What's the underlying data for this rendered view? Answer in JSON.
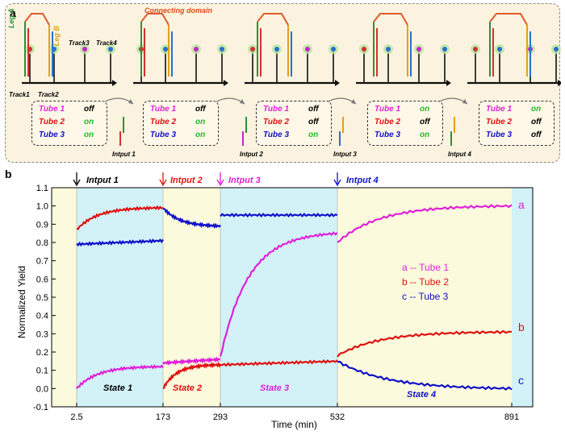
{
  "figure_a": {
    "label": "a",
    "connecting_domain": "Connecting domain",
    "leg_a": "Leg A",
    "leg_b": "Leg B",
    "tracks": [
      "Track1",
      "Track2",
      "Track3",
      "Track4"
    ],
    "states": [
      {
        "rows": [
          {
            "tube": "Tube 1",
            "value": "off"
          },
          {
            "tube": "Tube 2",
            "value": "on"
          },
          {
            "tube": "Tube 3",
            "value": "on"
          }
        ]
      },
      {
        "rows": [
          {
            "tube": "Tube 1",
            "value": "off"
          },
          {
            "tube": "Tube 2",
            "value": "on"
          },
          {
            "tube": "Tube 3",
            "value": "on"
          }
        ]
      },
      {
        "rows": [
          {
            "tube": "Tube 1",
            "value": "off"
          },
          {
            "tube": "Tube 2",
            "value": "off"
          },
          {
            "tube": "Tube 3",
            "value": "on"
          }
        ]
      },
      {
        "rows": [
          {
            "tube": "Tube 1",
            "value": "on"
          },
          {
            "tube": "Tube 2",
            "value": "off"
          },
          {
            "tube": "Tube 3",
            "value": "on"
          }
        ]
      },
      {
        "rows": [
          {
            "tube": "Tube 1",
            "value": "on"
          },
          {
            "tube": "Tube 2",
            "value": "off"
          },
          {
            "tube": "Tube 3",
            "value": "off"
          }
        ]
      }
    ],
    "inputs": [
      "Intput 1",
      "Intput 2",
      "Intput 3",
      "Intput 4"
    ]
  },
  "figure_b": {
    "label": "b",
    "colors": {
      "tube1": "#e020d8",
      "tube2": "#e01010",
      "tube3": "#1010c8",
      "bg_yellow": "#fcfadc",
      "bg_blue": "#d2f2f8"
    },
    "chart_data": {
      "type": "line",
      "xlabel": "Time (min)",
      "ylabel": "Normalized Yield",
      "xticks": [
        "2.5",
        "173",
        "293",
        "532",
        "891"
      ],
      "yticks": [
        "-0.1",
        "0.0",
        "0.1",
        "0.2",
        "0.3",
        "0.4",
        "0.5",
        "0.6",
        "0.7",
        "0.8",
        "0.9",
        "1.0",
        "1.1"
      ],
      "ylim": [
        -0.1,
        1.1
      ],
      "inputs": [
        {
          "label": "Intput 1",
          "at": "2.5",
          "color": "#000000"
        },
        {
          "label": "Intput 2",
          "at": "173",
          "color": "#e01010"
        },
        {
          "label": "Intput 3",
          "at": "293",
          "color": "#e020d8"
        },
        {
          "label": "Intput 4",
          "at": "532",
          "color": "#1010c8"
        }
      ],
      "states": [
        {
          "label": "State 1",
          "color": "#000000"
        },
        {
          "label": "State 2",
          "color": "#e01010"
        },
        {
          "label": "State 3",
          "color": "#e020d8"
        },
        {
          "label": "State 4",
          "color": "#1010c8"
        }
      ],
      "legend": [
        "a -- Tube 1",
        "b -- Tube 2",
        "c -- Tube 3"
      ],
      "curve_letters": [
        "a",
        "b",
        "c"
      ],
      "series": [
        {
          "name": "Tube 1",
          "segments": [
            {
              "start": 0.0,
              "end": 0.12,
              "mode": "rise"
            },
            {
              "start": 0.14,
              "end": 0.16,
              "mode": "flat"
            },
            {
              "start": 0.17,
              "end": 0.85,
              "mode": "rise"
            },
            {
              "start": 0.8,
              "end": 1.0,
              "mode": "rise"
            }
          ]
        },
        {
          "name": "Tube 2",
          "segments": [
            {
              "start": 0.87,
              "end": 0.99,
              "mode": "rise"
            },
            {
              "start": 0.0,
              "end": 0.13,
              "mode": "rise"
            },
            {
              "start": 0.13,
              "end": 0.15,
              "mode": "flat"
            },
            {
              "start": 0.18,
              "end": 0.31,
              "mode": "rise"
            }
          ]
        },
        {
          "name": "Tube 3",
          "segments": [
            {
              "start": 0.79,
              "end": 0.81,
              "mode": "flat"
            },
            {
              "start": 0.99,
              "end": 0.89,
              "mode": "fall"
            },
            {
              "start": 0.95,
              "end": 0.95,
              "mode": "flat"
            },
            {
              "start": 0.15,
              "end": 0.0,
              "mode": "fall"
            }
          ]
        }
      ]
    }
  }
}
